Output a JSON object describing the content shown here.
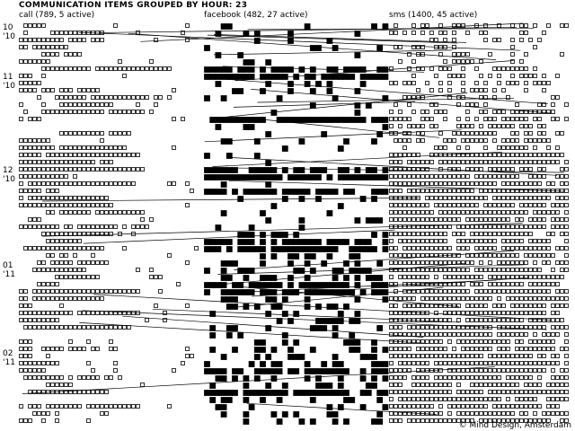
{
  "title": "COMMUNICATION ITEMS GROUPED BY HOUR: 23",
  "columns": [
    {
      "key": "call",
      "label": "call (789, 5 active)",
      "style": "outline"
    },
    {
      "key": "facebook",
      "label": "facebook (482, 27 active)",
      "style": "filled"
    },
    {
      "key": "sms",
      "label": "sms (1400, 45 active)",
      "style": "outline"
    }
  ],
  "months": [
    {
      "month": "10",
      "year": "'10"
    },
    {
      "month": "11",
      "year": "'10"
    },
    {
      "month": "12",
      "year": "'10"
    },
    {
      "month": "01",
      "year": "'11"
    },
    {
      "month": "02",
      "year": "'11"
    }
  ],
  "credit": "© Mind Design, Amsterdam",
  "colors": {
    "ink": "#000000",
    "background": "#ffffff"
  }
}
